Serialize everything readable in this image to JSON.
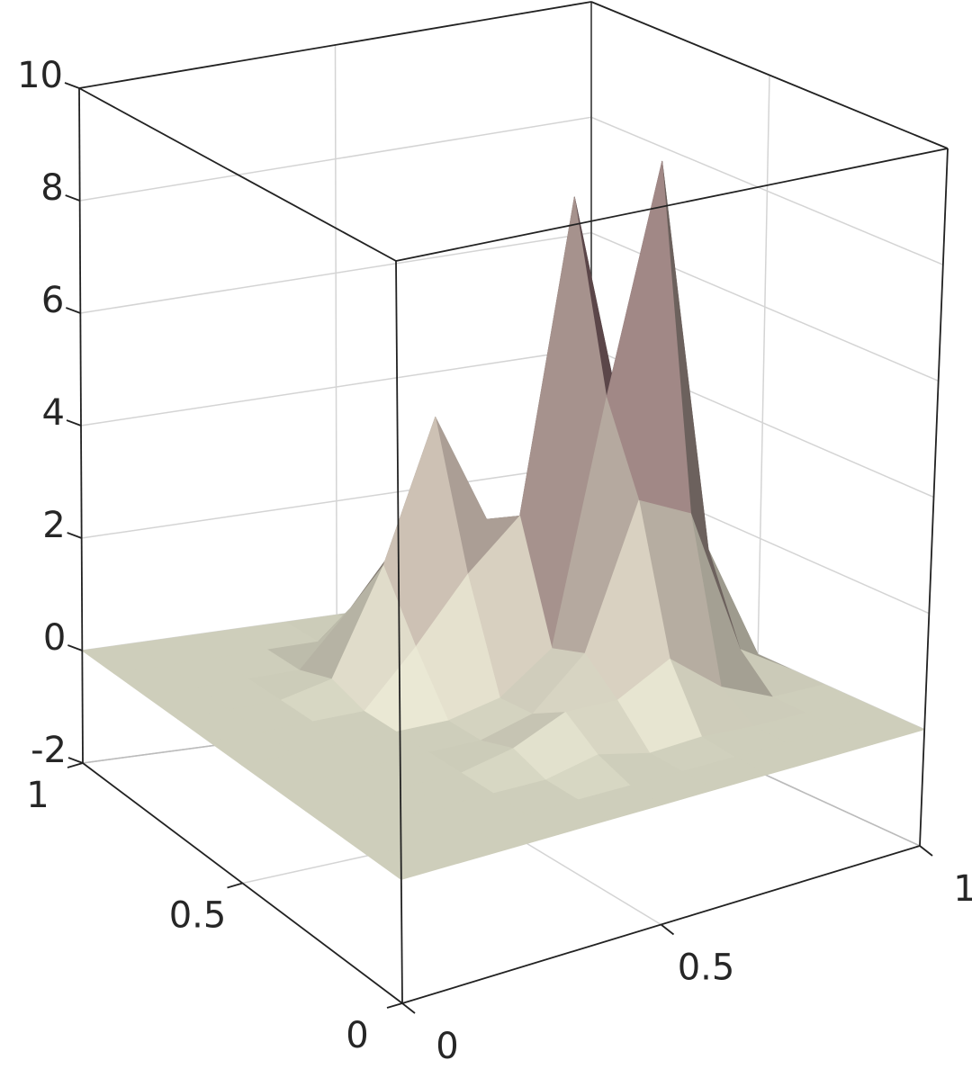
{
  "chart_data": {
    "type": "surface",
    "x": [
      0,
      0.1,
      0.2,
      0.3,
      0.4,
      0.5,
      0.6,
      0.7,
      0.8,
      0.9,
      1
    ],
    "y": [
      0,
      0.1,
      0.2,
      0.3,
      0.4,
      0.5,
      0.6,
      0.7,
      0.8,
      0.9,
      1
    ],
    "z": [
      [
        0,
        0,
        0,
        0,
        0,
        0,
        0,
        0,
        0,
        0,
        0
      ],
      [
        0,
        0,
        0,
        0,
        0,
        0,
        0,
        0,
        0,
        0,
        0
      ],
      [
        0,
        0,
        0,
        0,
        0,
        0.2,
        0,
        0.05,
        0,
        0,
        0
      ],
      [
        0,
        0,
        0,
        0,
        0.2,
        0.6,
        0.59,
        1.08,
        0.39,
        0,
        0
      ],
      [
        0,
        0,
        0,
        0,
        0,
        0.25,
        1.08,
        3.5,
        3.08,
        0.55,
        0
      ],
      [
        0,
        0,
        0,
        0,
        0,
        0.2,
        0.86,
        4.98,
        8.86,
        2,
        0
      ],
      [
        0,
        0,
        0,
        0,
        0.93,
        2,
        2.83,
        8.15,
        3.9,
        0.5,
        0
      ],
      [
        0,
        0,
        0,
        0.2,
        2,
        4.4,
        2.47,
        2.1,
        0.47,
        0,
        0
      ],
      [
        0,
        0,
        0,
        0,
        0.93,
        2,
        0.93,
        0,
        0,
        0,
        0
      ],
      [
        0,
        0,
        0,
        0,
        0,
        0.2,
        0,
        0,
        0,
        0,
        0
      ],
      [
        0,
        0,
        0,
        0,
        0,
        0,
        0,
        0,
        0,
        0,
        0
      ]
    ],
    "xlim": [
      0,
      1
    ],
    "ylim": [
      0,
      1
    ],
    "zlim": [
      -2,
      10
    ],
    "xticks": [
      0,
      0.5,
      1
    ],
    "yticks": [
      0,
      0.5,
      1
    ],
    "zticks": [
      -2,
      0,
      2,
      4,
      6,
      8,
      10
    ],
    "grid": true,
    "colormap": [
      "#dcdcc8",
      "#6f4450"
    ]
  }
}
